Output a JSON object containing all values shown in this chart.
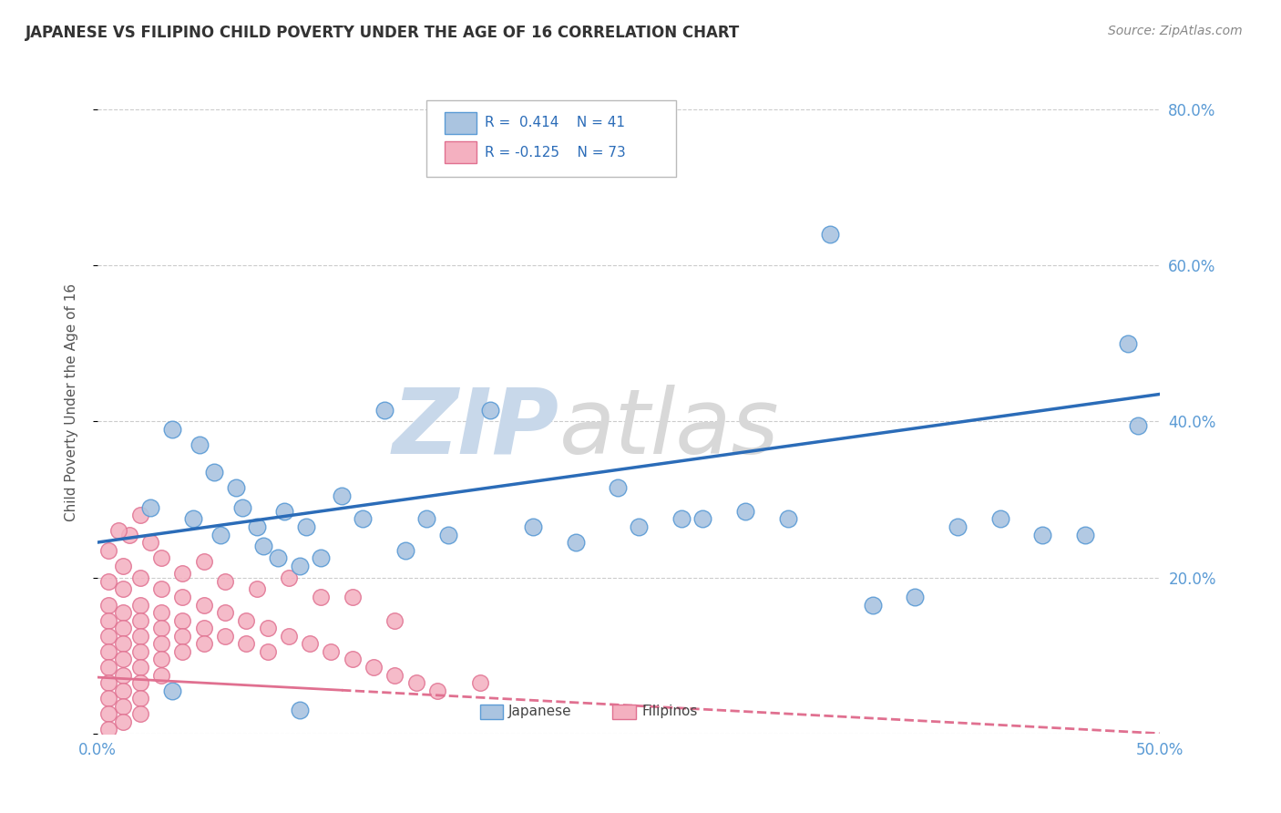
{
  "title": "JAPANESE VS FILIPINO CHILD POVERTY UNDER THE AGE OF 16 CORRELATION CHART",
  "source": "Source: ZipAtlas.com",
  "ylabel": "Child Poverty Under the Age of 16",
  "yticks": [
    0.0,
    0.2,
    0.4,
    0.6,
    0.8
  ],
  "ytick_labels_right": [
    "",
    "20.0%",
    "40.0%",
    "60.0%",
    "80.0%"
  ],
  "xlim": [
    0.0,
    0.5
  ],
  "ylim": [
    0.0,
    0.85
  ],
  "japanese_color": "#aac4e0",
  "japanese_edge": "#5b9bd5",
  "filipino_color": "#f4b0c0",
  "filipino_edge": "#e07090",
  "trendline_japanese_color": "#2b6cb8",
  "trendline_filipino_color": "#e07090",
  "trendline_jap_y0": 0.245,
  "trendline_jap_y1": 0.435,
  "trendline_fil_y0": 0.072,
  "trendline_fil_y1": 0.0,
  "trendline_fil_solid_x1": 0.115,
  "japanese_scatter": [
    [
      0.025,
      0.29
    ],
    [
      0.035,
      0.39
    ],
    [
      0.045,
      0.275
    ],
    [
      0.048,
      0.37
    ],
    [
      0.055,
      0.335
    ],
    [
      0.058,
      0.255
    ],
    [
      0.065,
      0.315
    ],
    [
      0.068,
      0.29
    ],
    [
      0.075,
      0.265
    ],
    [
      0.078,
      0.24
    ],
    [
      0.085,
      0.225
    ],
    [
      0.088,
      0.285
    ],
    [
      0.095,
      0.215
    ],
    [
      0.098,
      0.265
    ],
    [
      0.105,
      0.225
    ],
    [
      0.115,
      0.305
    ],
    [
      0.125,
      0.275
    ],
    [
      0.135,
      0.415
    ],
    [
      0.145,
      0.235
    ],
    [
      0.155,
      0.275
    ],
    [
      0.165,
      0.255
    ],
    [
      0.185,
      0.415
    ],
    [
      0.205,
      0.265
    ],
    [
      0.225,
      0.245
    ],
    [
      0.245,
      0.315
    ],
    [
      0.255,
      0.265
    ],
    [
      0.275,
      0.275
    ],
    [
      0.285,
      0.275
    ],
    [
      0.305,
      0.285
    ],
    [
      0.325,
      0.275
    ],
    [
      0.345,
      0.64
    ],
    [
      0.365,
      0.165
    ],
    [
      0.385,
      0.175
    ],
    [
      0.405,
      0.265
    ],
    [
      0.425,
      0.275
    ],
    [
      0.445,
      0.255
    ],
    [
      0.465,
      0.255
    ],
    [
      0.485,
      0.5
    ],
    [
      0.49,
      0.395
    ],
    [
      0.035,
      0.055
    ],
    [
      0.095,
      0.03
    ]
  ],
  "filipino_scatter": [
    [
      0.005,
      0.235
    ],
    [
      0.005,
      0.195
    ],
    [
      0.005,
      0.165
    ],
    [
      0.005,
      0.145
    ],
    [
      0.005,
      0.125
    ],
    [
      0.005,
      0.105
    ],
    [
      0.005,
      0.085
    ],
    [
      0.005,
      0.065
    ],
    [
      0.005,
      0.045
    ],
    [
      0.005,
      0.025
    ],
    [
      0.005,
      0.005
    ],
    [
      0.012,
      0.215
    ],
    [
      0.012,
      0.185
    ],
    [
      0.012,
      0.155
    ],
    [
      0.012,
      0.135
    ],
    [
      0.012,
      0.115
    ],
    [
      0.012,
      0.095
    ],
    [
      0.012,
      0.075
    ],
    [
      0.012,
      0.055
    ],
    [
      0.012,
      0.035
    ],
    [
      0.012,
      0.015
    ],
    [
      0.02,
      0.2
    ],
    [
      0.02,
      0.165
    ],
    [
      0.02,
      0.145
    ],
    [
      0.02,
      0.125
    ],
    [
      0.02,
      0.105
    ],
    [
      0.02,
      0.085
    ],
    [
      0.02,
      0.065
    ],
    [
      0.02,
      0.045
    ],
    [
      0.02,
      0.025
    ],
    [
      0.03,
      0.185
    ],
    [
      0.03,
      0.155
    ],
    [
      0.03,
      0.135
    ],
    [
      0.03,
      0.115
    ],
    [
      0.03,
      0.095
    ],
    [
      0.03,
      0.075
    ],
    [
      0.04,
      0.175
    ],
    [
      0.04,
      0.145
    ],
    [
      0.04,
      0.125
    ],
    [
      0.04,
      0.105
    ],
    [
      0.05,
      0.165
    ],
    [
      0.05,
      0.135
    ],
    [
      0.05,
      0.115
    ],
    [
      0.06,
      0.155
    ],
    [
      0.06,
      0.125
    ],
    [
      0.07,
      0.145
    ],
    [
      0.07,
      0.115
    ],
    [
      0.08,
      0.135
    ],
    [
      0.08,
      0.105
    ],
    [
      0.09,
      0.125
    ],
    [
      0.1,
      0.115
    ],
    [
      0.11,
      0.105
    ],
    [
      0.12,
      0.095
    ],
    [
      0.13,
      0.085
    ],
    [
      0.14,
      0.075
    ],
    [
      0.15,
      0.065
    ],
    [
      0.16,
      0.055
    ],
    [
      0.18,
      0.065
    ],
    [
      0.025,
      0.245
    ],
    [
      0.03,
      0.225
    ],
    [
      0.04,
      0.205
    ],
    [
      0.05,
      0.22
    ],
    [
      0.06,
      0.195
    ],
    [
      0.075,
      0.185
    ],
    [
      0.09,
      0.2
    ],
    [
      0.105,
      0.175
    ],
    [
      0.12,
      0.175
    ],
    [
      0.14,
      0.145
    ],
    [
      0.02,
      0.28
    ],
    [
      0.015,
      0.255
    ],
    [
      0.01,
      0.26
    ]
  ]
}
